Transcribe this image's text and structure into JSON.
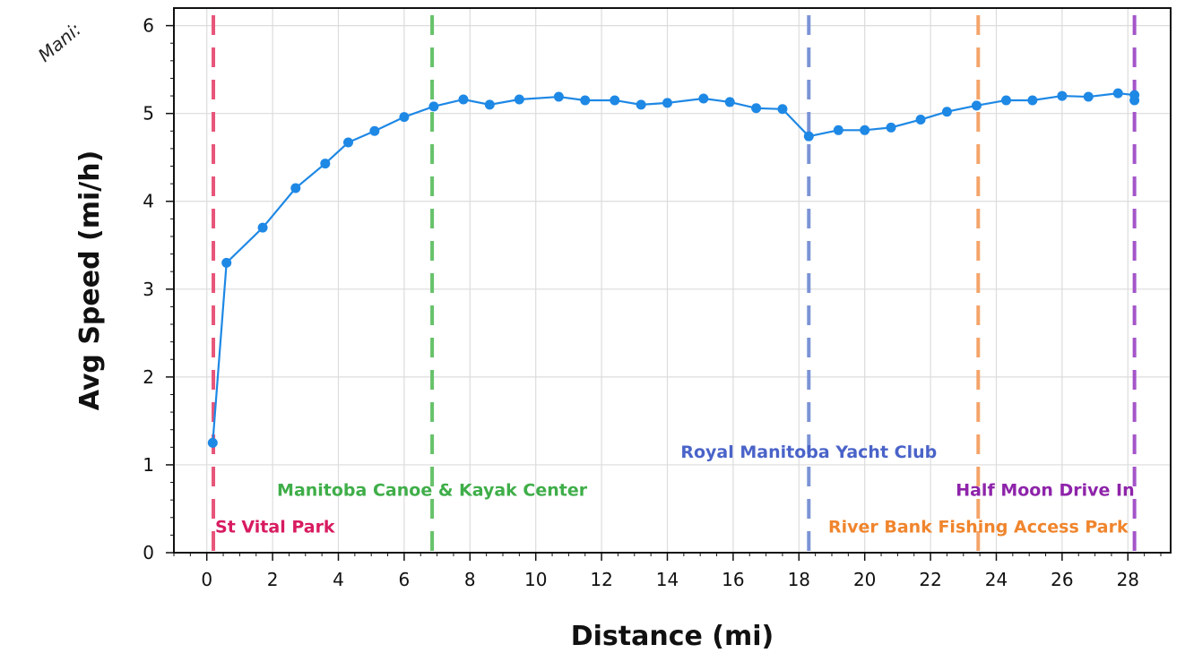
{
  "chart_data": {
    "type": "line",
    "title": "",
    "xlabel": "Distance (mi)",
    "ylabel": "Avg Speed (mi/h)",
    "corner_text": "Mani:",
    "xlim": [
      -1,
      29.3
    ],
    "ylim": [
      0,
      6.2
    ],
    "x_ticks": [
      0,
      2,
      4,
      6,
      8,
      10,
      12,
      14,
      16,
      18,
      20,
      22,
      24,
      26,
      28
    ],
    "y_ticks": [
      0,
      1,
      2,
      3,
      4,
      5,
      6
    ],
    "grid": true,
    "series": [
      {
        "color": "#1e88e5",
        "points": [
          [
            0.18,
            1.25
          ],
          [
            0.6,
            3.3
          ],
          [
            1.7,
            3.7
          ],
          [
            2.7,
            4.15
          ],
          [
            3.6,
            4.43
          ],
          [
            4.3,
            4.67
          ],
          [
            5.1,
            4.8
          ],
          [
            6.0,
            4.96
          ],
          [
            6.9,
            5.08
          ],
          [
            7.8,
            5.16
          ],
          [
            8.6,
            5.1
          ],
          [
            9.5,
            5.16
          ],
          [
            10.7,
            5.19
          ],
          [
            11.5,
            5.15
          ],
          [
            12.4,
            5.15
          ],
          [
            13.2,
            5.1
          ],
          [
            14.0,
            5.12
          ],
          [
            15.1,
            5.17
          ],
          [
            15.9,
            5.13
          ],
          [
            16.7,
            5.06
          ],
          [
            17.5,
            5.05
          ],
          [
            18.3,
            4.74
          ],
          [
            19.2,
            4.81
          ],
          [
            20.0,
            4.81
          ],
          [
            20.8,
            4.84
          ],
          [
            21.7,
            4.93
          ],
          [
            22.5,
            5.02
          ],
          [
            23.4,
            5.09
          ],
          [
            24.3,
            5.15
          ],
          [
            25.1,
            5.15
          ],
          [
            26.0,
            5.2
          ],
          [
            26.8,
            5.19
          ],
          [
            27.7,
            5.23
          ],
          [
            28.2,
            5.21
          ],
          [
            28.2,
            5.15
          ]
        ]
      }
    ],
    "markers": [
      {
        "x": 0.2,
        "label": "St Vital Park",
        "color": "#e8557a",
        "label_color": "#d81b60",
        "label_y": 0.3,
        "anchor": "start"
      },
      {
        "x": 6.85,
        "label": "Manitoba Canoe & Kayak Center",
        "color": "#66c26a",
        "label_color": "#3fae49",
        "label_y": 0.72,
        "anchor": "middle"
      },
      {
        "x": 18.3,
        "label": "Royal Manitoba Yacht Club",
        "color": "#7b93d6",
        "label_color": "#4a63c9",
        "label_y": 1.15,
        "anchor": "middle"
      },
      {
        "x": 23.45,
        "label": "River Bank Fishing Access Park",
        "color": "#f4a46b",
        "label_color": "#f0852d",
        "label_y": 0.3,
        "anchor": "middle"
      },
      {
        "x": 28.2,
        "label": "Half Moon Drive In",
        "color": "#a455c9",
        "label_color": "#8e24aa",
        "label_y": 0.72,
        "anchor": "end"
      }
    ]
  }
}
